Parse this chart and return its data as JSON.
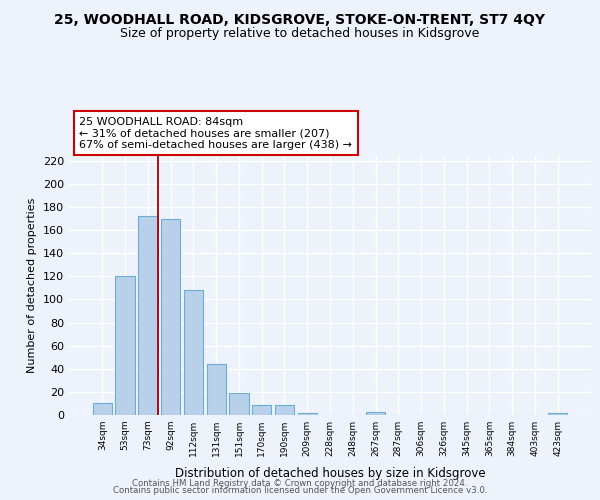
{
  "title": "25, WOODHALL ROAD, KIDSGROVE, STOKE-ON-TRENT, ST7 4QY",
  "subtitle": "Size of property relative to detached houses in Kidsgrove",
  "xlabel": "Distribution of detached houses by size in Kidsgrove",
  "ylabel": "Number of detached properties",
  "bar_labels": [
    "34sqm",
    "53sqm",
    "73sqm",
    "92sqm",
    "112sqm",
    "131sqm",
    "151sqm",
    "170sqm",
    "190sqm",
    "209sqm",
    "228sqm",
    "248sqm",
    "267sqm",
    "287sqm",
    "306sqm",
    "326sqm",
    "345sqm",
    "365sqm",
    "384sqm",
    "403sqm",
    "423sqm"
  ],
  "bar_heights": [
    10,
    120,
    172,
    170,
    108,
    44,
    19,
    9,
    9,
    2,
    0,
    0,
    3,
    0,
    0,
    0,
    0,
    0,
    0,
    0,
    2
  ],
  "bar_color": "#b8d0ea",
  "bar_edge_color": "#6aaed6",
  "vline_color": "#aa0000",
  "annotation_line1": "25 WOODHALL ROAD: 84sqm",
  "annotation_line2": "← 31% of detached houses are smaller (207)",
  "annotation_line3": "67% of semi-detached houses are larger (438) →",
  "annotation_box_color": "white",
  "annotation_box_edge": "#cc0000",
  "ylim": [
    0,
    225
  ],
  "yticks": [
    0,
    20,
    40,
    60,
    80,
    100,
    120,
    140,
    160,
    180,
    200,
    220
  ],
  "footer_line1": "Contains HM Land Registry data © Crown copyright and database right 2024.",
  "footer_line2": "Contains public sector information licensed under the Open Government Licence v3.0.",
  "bg_color": "#eef3fb",
  "grid_color": "#ffffff",
  "title_fontsize": 10,
  "subtitle_fontsize": 9
}
